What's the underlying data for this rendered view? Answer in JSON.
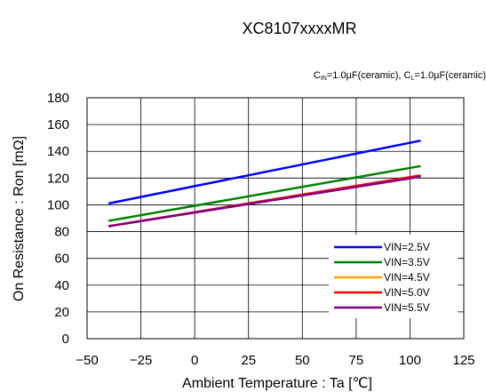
{
  "chart_data": {
    "type": "line",
    "title": "XC8107xxxxMR",
    "condition": {
      "parts": [
        {
          "t": "C"
        },
        {
          "t": "IN",
          "sub": true
        },
        {
          "t": "=1.0µF(ceramic), C"
        },
        {
          "t": "L",
          "sub": true
        },
        {
          "t": "=1.0µF(ceramic)"
        }
      ]
    },
    "xlabel": "Ambient Temperature : Ta [℃]",
    "ylabel": "On Resistance : Ron [mΩ]",
    "xlim": [
      -50,
      125
    ],
    "ylim": [
      0,
      180
    ],
    "xticks": [
      -50,
      -25,
      0,
      25,
      50,
      75,
      100,
      125
    ],
    "yticks": [
      0,
      20,
      40,
      60,
      80,
      100,
      120,
      140,
      160,
      180
    ],
    "grid": true,
    "legend_position": "bottom-right",
    "series": [
      {
        "name": "VIN=2.5V",
        "color": "#0000ff",
        "x": [
          -40,
          105
        ],
        "y": [
          101,
          148
        ]
      },
      {
        "name": "VIN=3.5V",
        "color": "#008000",
        "x": [
          -40,
          105
        ],
        "y": [
          88,
          129
        ]
      },
      {
        "name": "VIN=4.5V",
        "color": "#ffa500",
        "x": [
          -40,
          105
        ],
        "y": [
          84,
          122
        ]
      },
      {
        "name": "VIN=5.0V",
        "color": "#ff0000",
        "x": [
          -40,
          105
        ],
        "y": [
          84,
          122
        ]
      },
      {
        "name": "VIN=5.5V",
        "color": "#800080",
        "x": [
          -40,
          105
        ],
        "y": [
          84,
          121
        ]
      }
    ]
  }
}
